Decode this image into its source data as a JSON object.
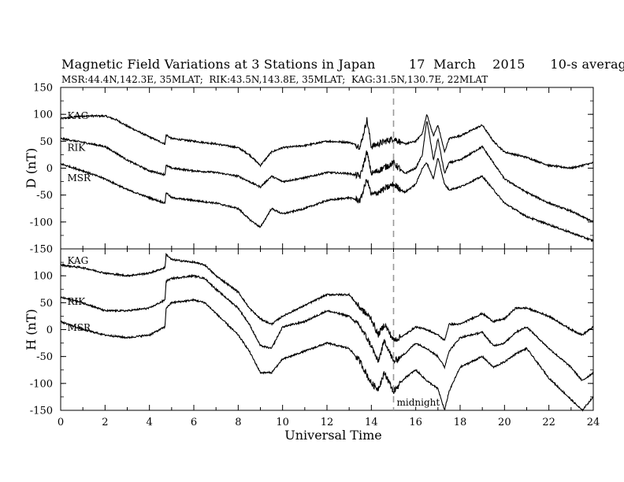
{
  "chart_data": {
    "type": "line",
    "title": "Magnetic Field Variations at 3 Stations in Japan        17  March    2015      10-s averages",
    "subtitle": "MSR:44.4N,142.3E, 35MLAT;  RIK:43.5N,143.8E, 35MLAT;  KAG:31.5N,130.7E, 22MLAT",
    "xlabel": "Universal Time",
    "xlim": [
      0,
      24
    ],
    "xticks": [
      "0",
      "2",
      "4",
      "6",
      "8",
      "10",
      "12",
      "14",
      "16",
      "18",
      "20",
      "22",
      "24"
    ],
    "marker": {
      "x": 15,
      "label": "midnight",
      "style": "dashed"
    },
    "panels": [
      {
        "ylabel": "D (nT)",
        "ylim": [
          -150,
          150
        ],
        "yticks": [
          "150",
          "100",
          "50",
          "0",
          "-50",
          "-100",
          "-150"
        ],
        "series": [
          {
            "name": "KAG",
            "label_at": [
              0.3,
              97
            ],
            "x": [
              0,
              1,
              2,
              2.5,
              3,
              4,
              4.7,
              4.75,
              5,
              6,
              7,
              8,
              8.5,
              9,
              9.5,
              10,
              11,
              12,
              13,
              13.5,
              13.8,
              14,
              14.3,
              15,
              15.5,
              16,
              16.3,
              16.5,
              16.8,
              17,
              17.3,
              17.5,
              18,
              19,
              19.5,
              20,
              21,
              22,
              23,
              24
            ],
            "y": [
              92,
              97,
              97,
              90,
              78,
              58,
              45,
              62,
              55,
              50,
              45,
              38,
              25,
              5,
              30,
              38,
              42,
              50,
              48,
              40,
              90,
              40,
              45,
              55,
              45,
              50,
              65,
              100,
              60,
              80,
              30,
              55,
              60,
              80,
              50,
              30,
              20,
              5,
              0,
              10
            ]
          },
          {
            "name": "RIK",
            "label_at": [
              0.3,
              38
            ],
            "x": [
              0,
              1,
              2,
              2.5,
              3,
              4,
              4.7,
              4.75,
              5,
              6,
              7,
              8,
              8.5,
              9,
              9.5,
              10,
              11,
              12,
              13,
              13.5,
              13.8,
              14,
              14.3,
              15,
              15.5,
              16,
              16.3,
              16.5,
              16.8,
              17,
              17.3,
              17.5,
              18,
              19,
              19.5,
              20,
              21,
              22,
              23,
              24
            ],
            "y": [
              55,
              48,
              40,
              28,
              15,
              -5,
              -12,
              5,
              0,
              -5,
              -8,
              -15,
              -25,
              -35,
              -15,
              -25,
              -18,
              -8,
              -10,
              -15,
              30,
              -10,
              -5,
              10,
              -10,
              0,
              25,
              90,
              15,
              55,
              -10,
              10,
              15,
              40,
              10,
              -20,
              -45,
              -65,
              -80,
              -100
            ]
          },
          {
            "name": "MSR",
            "label_at": [
              0.3,
              -18
            ],
            "x": [
              0,
              1,
              2,
              2.5,
              3,
              4,
              4.7,
              4.75,
              5,
              6,
              7,
              8,
              8.5,
              9,
              9.5,
              10,
              11,
              12,
              13,
              13.5,
              13.8,
              14,
              14.3,
              15,
              15.5,
              16,
              16.3,
              16.5,
              16.8,
              17,
              17.3,
              17.5,
              18,
              19,
              19.5,
              20,
              21,
              22,
              23,
              24
            ],
            "y": [
              8,
              -5,
              -20,
              -30,
              -40,
              -55,
              -65,
              -45,
              -55,
              -60,
              -65,
              -75,
              -95,
              -110,
              -75,
              -85,
              -75,
              -60,
              -55,
              -60,
              -20,
              -50,
              -45,
              -30,
              -45,
              -30,
              0,
              10,
              -20,
              20,
              -30,
              -40,
              -35,
              -15,
              -40,
              -65,
              -90,
              -105,
              -120,
              -135
            ]
          }
        ]
      },
      {
        "ylabel": "H (nT)",
        "ylim": [
          -150,
          150
        ],
        "yticks": [
          "150",
          "100",
          "50",
          "0",
          "-50",
          "-100",
          "-150"
        ],
        "series": [
          {
            "name": "KAG",
            "label_at": [
              0.3,
              128
            ],
            "x": [
              0,
              1,
              2,
              3,
              4,
              4.7,
              4.75,
              5,
              6,
              6.5,
              7,
              8,
              8.5,
              9,
              9.5,
              10,
              11,
              12,
              13,
              13.5,
              14,
              14.3,
              14.6,
              15,
              15.5,
              16,
              16.5,
              17,
              17.3,
              17.5,
              18,
              19,
              19.5,
              20,
              20.5,
              21,
              22,
              23,
              23.5,
              24
            ],
            "y": [
              120,
              115,
              105,
              100,
              105,
              115,
              140,
              130,
              125,
              120,
              100,
              70,
              40,
              20,
              10,
              25,
              45,
              65,
              65,
              40,
              20,
              -10,
              10,
              -20,
              -10,
              5,
              0,
              -10,
              -20,
              10,
              10,
              30,
              15,
              20,
              40,
              40,
              25,
              0,
              -10,
              5
            ]
          },
          {
            "name": "RIK",
            "label_at": [
              0.3,
              52
            ],
            "x": [
              0,
              1,
              2,
              3,
              4,
              4.7,
              4.75,
              5,
              6,
              6.5,
              7,
              8,
              8.5,
              9,
              9.5,
              10,
              11,
              12,
              13,
              13.5,
              14,
              14.3,
              14.6,
              15,
              15.5,
              16,
              16.5,
              17,
              17.3,
              17.5,
              18,
              19,
              19.5,
              20,
              20.5,
              21,
              22,
              23,
              23.5,
              24
            ],
            "y": [
              60,
              50,
              35,
              35,
              40,
              55,
              90,
              95,
              100,
              95,
              75,
              40,
              10,
              -30,
              -35,
              5,
              15,
              35,
              25,
              5,
              -30,
              -60,
              -20,
              -60,
              -45,
              -25,
              -35,
              -50,
              -70,
              -40,
              -15,
              -5,
              -30,
              -25,
              -5,
              5,
              -35,
              -70,
              -95,
              -80
            ]
          },
          {
            "name": "MSR",
            "label_at": [
              0.3,
              4
            ],
            "x": [
              0,
              1,
              2,
              3,
              4,
              4.7,
              4.75,
              5,
              6,
              6.5,
              7,
              8,
              8.5,
              9,
              9.5,
              10,
              11,
              12,
              13,
              13.5,
              14,
              14.3,
              14.6,
              15,
              15.5,
              16,
              16.5,
              17,
              17.3,
              17.5,
              18,
              19,
              19.5,
              20,
              20.5,
              21,
              22,
              23,
              23.5,
              24
            ],
            "y": [
              15,
              0,
              -10,
              -15,
              -10,
              5,
              40,
              50,
              55,
              50,
              30,
              -10,
              -40,
              -80,
              -80,
              -55,
              -40,
              -25,
              -35,
              -60,
              -100,
              -110,
              -80,
              -115,
              -90,
              -75,
              -95,
              -110,
              -150,
              -115,
              -70,
              -50,
              -70,
              -60,
              -45,
              -35,
              -90,
              -130,
              -150,
              -125
            ]
          }
        ]
      }
    ]
  }
}
